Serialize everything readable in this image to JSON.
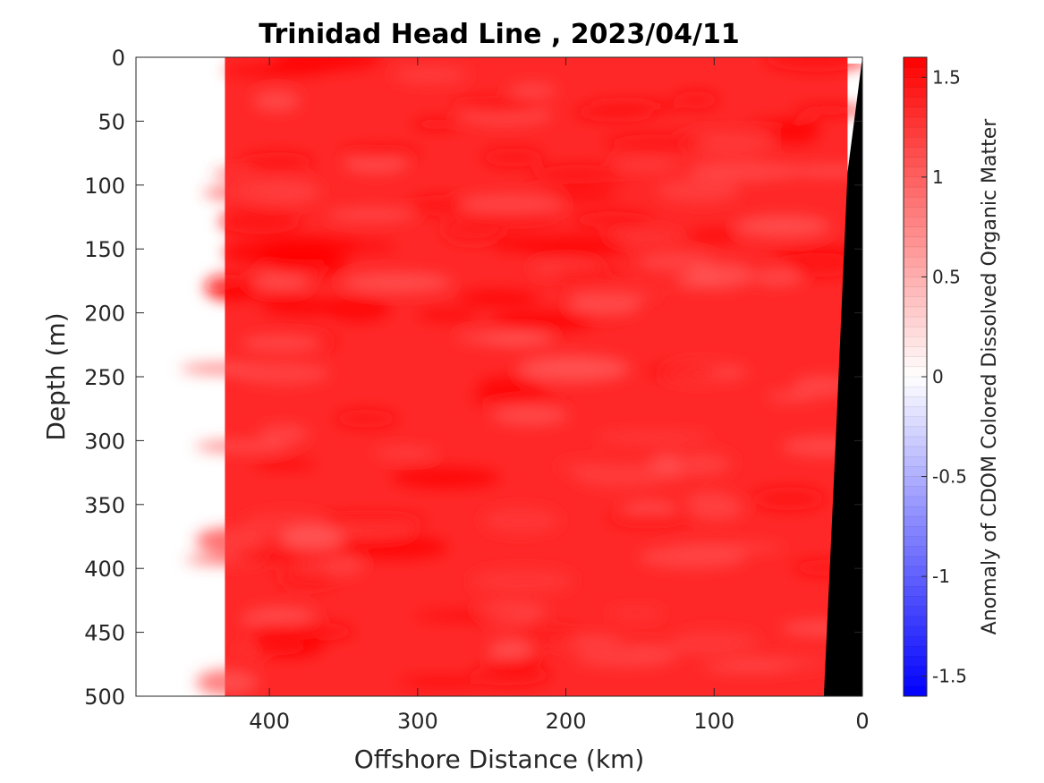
{
  "chart_data": {
    "type": "heatmap",
    "title": "Trinidad Head Line , 2023/04/11",
    "xlabel": "Offshore Distance (km)",
    "ylabel": "Depth (m)",
    "xlim": [
      490,
      0
    ],
    "ylim": [
      0,
      500
    ],
    "x_ticks": [
      400,
      300,
      200,
      100,
      0
    ],
    "y_ticks": [
      0,
      50,
      100,
      150,
      200,
      250,
      300,
      350,
      400,
      450,
      500
    ],
    "data_extent_km": [
      430,
      10
    ],
    "colorbar": {
      "label": "Anomaly of CDOM Colored Dissolved Organic Matter",
      "range": [
        -1.6,
        1.6
      ],
      "ticks": [
        1.5,
        1,
        0.5,
        0,
        -0.5,
        -1,
        -1.5
      ],
      "low_color": "#0000ff",
      "mid_color": "#ffffff",
      "high_color": "#ff0000"
    },
    "typical_value": 1.35,
    "bathymetry": [
      {
        "x": 0,
        "depth": 0
      },
      {
        "x": 10,
        "depth": 90
      },
      {
        "x": 18,
        "depth": 300
      },
      {
        "x": 26,
        "depth": 500
      }
    ],
    "bathymetry_color": "#000000"
  }
}
